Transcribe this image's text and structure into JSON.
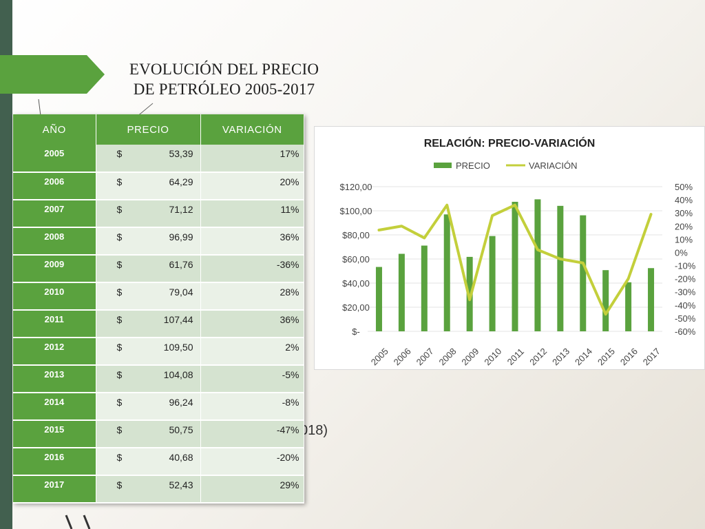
{
  "slide": {
    "title_line1": "EVOLUCIÓN DEL PRECIO",
    "title_line2": "DE PETRÓLEO 2005-2017",
    "partial_note": "018)"
  },
  "colors": {
    "brand_green": "#5aa23e",
    "line_green": "#c3cf3b",
    "strip": "#42604f"
  },
  "table": {
    "headers": [
      "AÑO",
      "PRECIO",
      "VARIACIÓN"
    ],
    "rows": [
      {
        "year": "2005",
        "currency": "$",
        "price": "53,39",
        "variation": "17%"
      },
      {
        "year": "2006",
        "currency": "$",
        "price": "64,29",
        "variation": "20%"
      },
      {
        "year": "2007",
        "currency": "$",
        "price": "71,12",
        "variation": "11%"
      },
      {
        "year": "2008",
        "currency": "$",
        "price": "96,99",
        "variation": "36%"
      },
      {
        "year": "2009",
        "currency": "$",
        "price": "61,76",
        "variation": "-36%"
      },
      {
        "year": "2010",
        "currency": "$",
        "price": "79,04",
        "variation": "28%"
      },
      {
        "year": "2011",
        "currency": "$",
        "price": "107,44",
        "variation": "36%"
      },
      {
        "year": "2012",
        "currency": "$",
        "price": "109,50",
        "variation": "2%"
      },
      {
        "year": "2013",
        "currency": "$",
        "price": "104,08",
        "variation": "-5%"
      },
      {
        "year": "2014",
        "currency": "$",
        "price": "96,24",
        "variation": "-8%"
      },
      {
        "year": "2015",
        "currency": "$",
        "price": "50,75",
        "variation": "-47%"
      },
      {
        "year": "2016",
        "currency": "$",
        "price": "40,68",
        "variation": "-20%"
      },
      {
        "year": "2017",
        "currency": "$",
        "price": "52,43",
        "variation": "29%"
      }
    ]
  },
  "chart_data": {
    "type": "bar",
    "title": "RELACIÓN: PRECIO-VARIACIÓN",
    "categories": [
      "2005",
      "2006",
      "2007",
      "2008",
      "2009",
      "2010",
      "2011",
      "2012",
      "2013",
      "2014",
      "2015",
      "2016",
      "2017"
    ],
    "series": [
      {
        "name": "PRECIO",
        "type": "bar",
        "axis": "left",
        "color": "#5aa23e",
        "values": [
          53.39,
          64.29,
          71.12,
          96.99,
          61.76,
          79.04,
          107.44,
          109.5,
          104.08,
          96.24,
          50.75,
          40.68,
          52.43
        ]
      },
      {
        "name": "VARIACIÓN",
        "type": "line",
        "axis": "right",
        "color": "#c3cf3b",
        "values": [
          17,
          20,
          11,
          36,
          -36,
          28,
          36,
          2,
          -5,
          -8,
          -47,
          -20,
          29
        ]
      }
    ],
    "y_left": {
      "ylim": [
        0,
        120
      ],
      "ticks": [
        "$-",
        "$20,00",
        "$40,00",
        "$60,00",
        "$80,00",
        "$100,00",
        "$120,00"
      ]
    },
    "y_right": {
      "ylim": [
        -60,
        50
      ],
      "ticks": [
        "-60%",
        "-50%",
        "-40%",
        "-30%",
        "-20%",
        "-10%",
        "0%",
        "10%",
        "20%",
        "30%",
        "40%",
        "50%"
      ]
    },
    "legend": "top",
    "grid": true
  }
}
